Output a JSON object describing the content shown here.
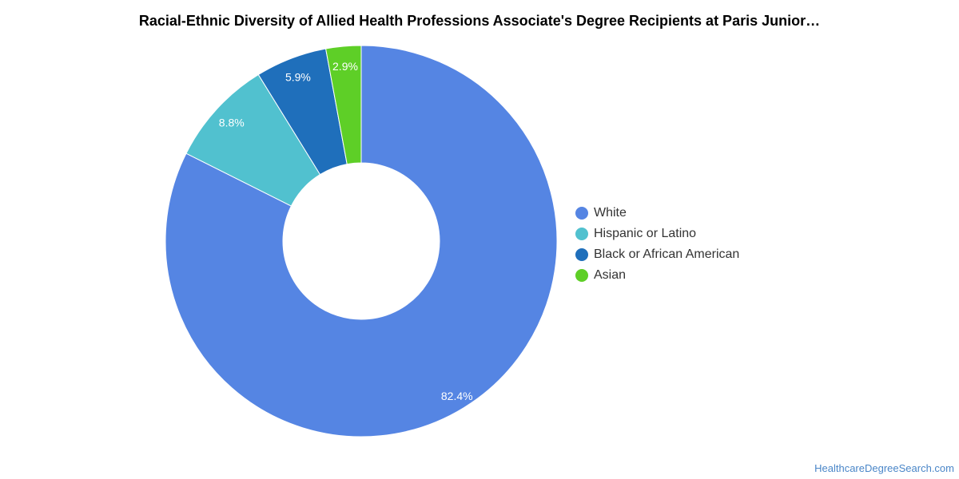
{
  "chart_data": {
    "type": "pie",
    "variant": "donut",
    "title": "Racial-Ethnic Diversity of Allied Health Professions Associate's Degree Recipients at Paris Junior…",
    "categories": [
      "White",
      "Hispanic or Latino",
      "Black or African American",
      "Asian"
    ],
    "values": [
      82.4,
      8.8,
      5.9,
      2.9
    ],
    "labels": [
      "82.4%",
      "8.8%",
      "5.9%",
      "2.9%"
    ],
    "colors": [
      "#5585e3",
      "#51c1cf",
      "#1f6fbb",
      "#5ecf27"
    ],
    "legend_position": "right"
  },
  "source": "HealthcareDegreeSearch.com"
}
